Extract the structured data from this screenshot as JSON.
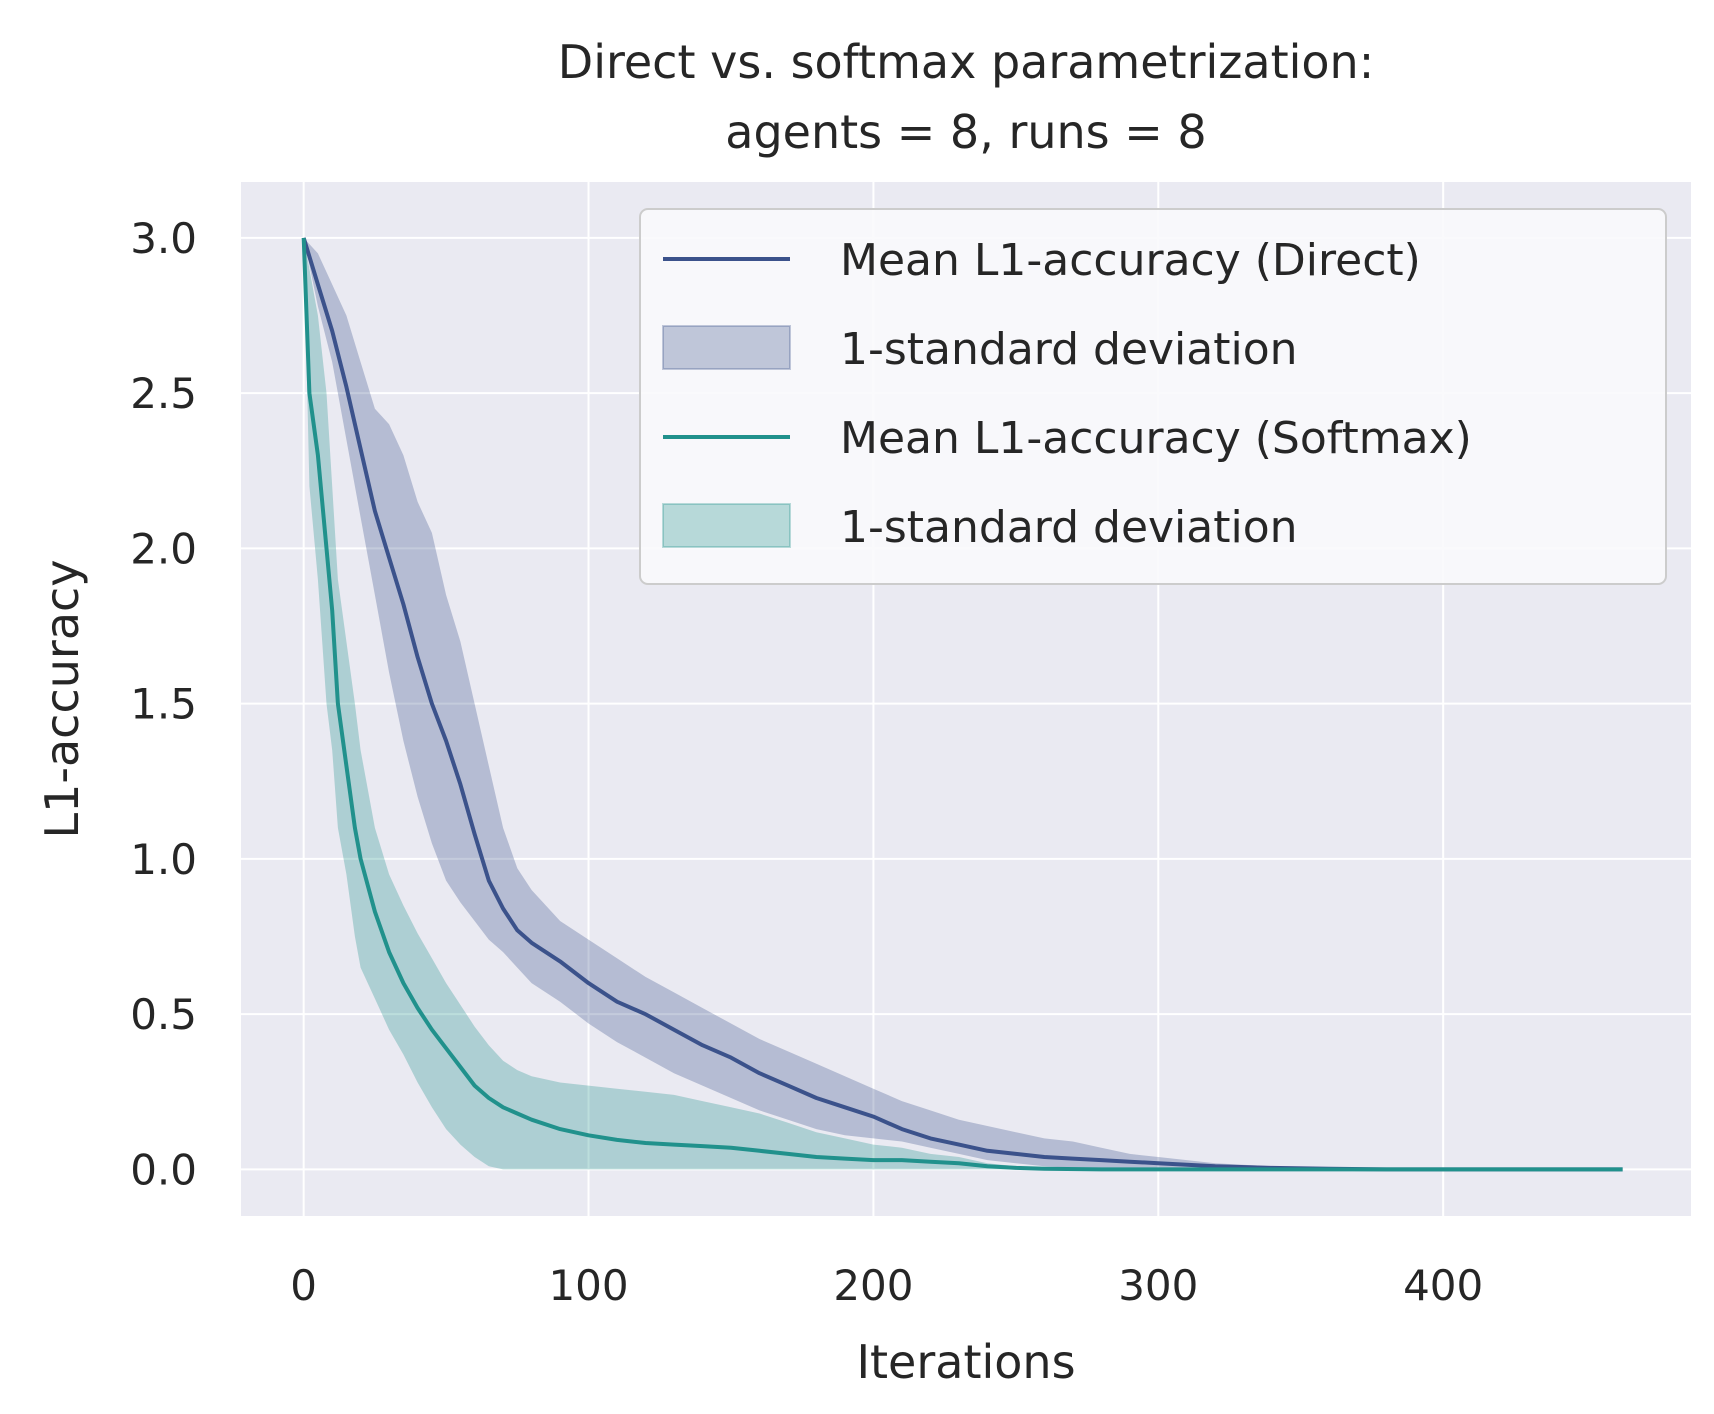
{
  "chart_data": {
    "type": "line",
    "title_line1": "Direct vs. softmax parametrization:",
    "title_line2": "agents = 8, runs = 8",
    "xlabel": "Iterations",
    "ylabel": "L1-accuracy",
    "xlim": [
      -22,
      487
    ],
    "ylim": [
      -0.15,
      3.18
    ],
    "xticks": [
      0,
      100,
      200,
      300,
      400
    ],
    "xtick_labels": [
      "0",
      "100",
      "200",
      "300",
      "400"
    ],
    "yticks": [
      0.0,
      0.5,
      1.0,
      1.5,
      2.0,
      2.5,
      3.0
    ],
    "ytick_labels": [
      "0.0",
      "0.5",
      "1.0",
      "1.5",
      "2.0",
      "2.5",
      "3.0"
    ],
    "grid": true,
    "legend_position": "upper right",
    "background_color": "#eaeaf2",
    "series": [
      {
        "name": "Mean L1-accuracy (Direct)",
        "band_name": "1-standard deviation",
        "color": "#3b528b",
        "band_color": "#3b528b",
        "x": [
          0,
          5,
          10,
          15,
          20,
          25,
          30,
          35,
          40,
          45,
          50,
          55,
          60,
          65,
          70,
          75,
          80,
          90,
          100,
          110,
          120,
          130,
          140,
          150,
          160,
          170,
          180,
          190,
          200,
          210,
          220,
          230,
          240,
          250,
          260,
          270,
          280,
          290,
          300,
          320,
          340,
          360,
          380,
          400,
          420,
          440,
          463
        ],
        "y": [
          3.0,
          2.85,
          2.7,
          2.52,
          2.32,
          2.12,
          1.97,
          1.82,
          1.65,
          1.5,
          1.38,
          1.24,
          1.08,
          0.93,
          0.84,
          0.77,
          0.73,
          0.67,
          0.6,
          0.54,
          0.5,
          0.45,
          0.4,
          0.36,
          0.31,
          0.27,
          0.23,
          0.2,
          0.17,
          0.13,
          0.1,
          0.08,
          0.06,
          0.05,
          0.04,
          0.035,
          0.03,
          0.025,
          0.02,
          0.01,
          0.005,
          0.002,
          0.0,
          0.0,
          0.0,
          0.0,
          0.0
        ],
        "band_upper": [
          3.0,
          2.95,
          2.85,
          2.75,
          2.6,
          2.45,
          2.4,
          2.3,
          2.15,
          2.05,
          1.85,
          1.7,
          1.5,
          1.3,
          1.1,
          0.97,
          0.9,
          0.8,
          0.74,
          0.68,
          0.62,
          0.57,
          0.52,
          0.47,
          0.42,
          0.38,
          0.34,
          0.3,
          0.26,
          0.22,
          0.19,
          0.16,
          0.14,
          0.12,
          0.1,
          0.09,
          0.07,
          0.05,
          0.04,
          0.02,
          0.01,
          0.005,
          0.0,
          0.0,
          0.0,
          0.0,
          0.0
        ],
        "band_lower": [
          3.0,
          2.78,
          2.6,
          2.35,
          2.1,
          1.85,
          1.6,
          1.38,
          1.2,
          1.05,
          0.93,
          0.86,
          0.8,
          0.74,
          0.7,
          0.65,
          0.6,
          0.54,
          0.47,
          0.41,
          0.36,
          0.31,
          0.27,
          0.23,
          0.19,
          0.16,
          0.13,
          0.11,
          0.1,
          0.09,
          0.07,
          0.05,
          0.03,
          0.02,
          0.01,
          0.005,
          0.0,
          0.0,
          0.0,
          0.0,
          0.0,
          0.0,
          0.0,
          0.0,
          0.0,
          0.0,
          0.0
        ]
      },
      {
        "name": "Mean L1-accuracy (Softmax)",
        "band_name": "1-standard deviation",
        "color": "#21918c",
        "band_color": "#21918c",
        "x": [
          0,
          2,
          5,
          8,
          10,
          12,
          15,
          18,
          20,
          25,
          30,
          35,
          40,
          45,
          50,
          55,
          60,
          65,
          70,
          75,
          80,
          90,
          100,
          110,
          120,
          130,
          140,
          150,
          160,
          170,
          180,
          190,
          200,
          210,
          220,
          230,
          240,
          250,
          260,
          280,
          300,
          350,
          400,
          463
        ],
        "y": [
          3.0,
          2.5,
          2.3,
          2.0,
          1.8,
          1.5,
          1.3,
          1.1,
          1.0,
          0.83,
          0.7,
          0.6,
          0.52,
          0.45,
          0.39,
          0.33,
          0.27,
          0.23,
          0.2,
          0.18,
          0.16,
          0.13,
          0.11,
          0.095,
          0.085,
          0.08,
          0.075,
          0.07,
          0.06,
          0.05,
          0.04,
          0.035,
          0.03,
          0.03,
          0.025,
          0.02,
          0.01,
          0.005,
          0.002,
          0.0,
          0.0,
          0.0,
          0.0,
          0.0
        ],
        "band_upper": [
          3.0,
          2.9,
          2.75,
          2.5,
          2.2,
          1.9,
          1.7,
          1.5,
          1.35,
          1.1,
          0.95,
          0.85,
          0.76,
          0.68,
          0.6,
          0.53,
          0.46,
          0.4,
          0.35,
          0.32,
          0.3,
          0.28,
          0.27,
          0.26,
          0.25,
          0.24,
          0.22,
          0.2,
          0.18,
          0.15,
          0.12,
          0.1,
          0.08,
          0.07,
          0.05,
          0.04,
          0.02,
          0.01,
          0.005,
          0.0,
          0.0,
          0.0,
          0.0,
          0.0
        ],
        "band_lower": [
          3.0,
          2.2,
          1.9,
          1.5,
          1.35,
          1.1,
          0.95,
          0.75,
          0.65,
          0.55,
          0.45,
          0.37,
          0.28,
          0.2,
          0.13,
          0.08,
          0.04,
          0.01,
          0.0,
          0.0,
          0.0,
          0.0,
          0.0,
          0.0,
          0.0,
          0.0,
          0.0,
          0.0,
          0.0,
          0.0,
          0.0,
          0.0,
          0.0,
          0.0,
          0.0,
          0.0,
          0.0,
          0.0,
          0.0,
          0.0,
          0.0,
          0.0,
          0.0,
          0.0
        ]
      }
    ]
  }
}
